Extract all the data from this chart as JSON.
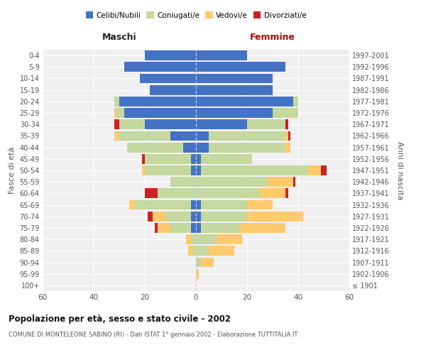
{
  "age_groups": [
    "100+",
    "95-99",
    "90-94",
    "85-89",
    "80-84",
    "75-79",
    "70-74",
    "65-69",
    "60-64",
    "55-59",
    "50-54",
    "45-49",
    "40-44",
    "35-39",
    "30-34",
    "25-29",
    "20-24",
    "15-19",
    "10-14",
    "5-9",
    "0-4"
  ],
  "birth_years": [
    "≤ 1901",
    "1902-1906",
    "1907-1911",
    "1912-1916",
    "1917-1921",
    "1922-1926",
    "1927-1931",
    "1932-1936",
    "1937-1941",
    "1942-1946",
    "1947-1951",
    "1952-1956",
    "1957-1961",
    "1962-1966",
    "1967-1971",
    "1972-1976",
    "1977-1981",
    "1982-1986",
    "1987-1991",
    "1992-1996",
    "1997-2001"
  ],
  "maschi_celibi": [
    0,
    0,
    0,
    0,
    0,
    2,
    2,
    2,
    0,
    0,
    2,
    2,
    5,
    10,
    20,
    28,
    30,
    18,
    22,
    28,
    20
  ],
  "maschi_coniugati": [
    0,
    0,
    0,
    1,
    2,
    8,
    10,
    22,
    15,
    10,
    18,
    18,
    22,
    20,
    10,
    3,
    2,
    0,
    0,
    0,
    0
  ],
  "maschi_vedovi": [
    0,
    0,
    0,
    2,
    2,
    5,
    5,
    2,
    0,
    0,
    1,
    0,
    0,
    2,
    0,
    1,
    0,
    0,
    0,
    0,
    0
  ],
  "maschi_divorziati": [
    0,
    0,
    0,
    0,
    0,
    1,
    2,
    0,
    5,
    0,
    0,
    1,
    0,
    0,
    2,
    0,
    0,
    0,
    0,
    0,
    0
  ],
  "femmine_nubili": [
    0,
    0,
    0,
    0,
    0,
    2,
    2,
    2,
    0,
    0,
    2,
    2,
    5,
    5,
    20,
    30,
    38,
    30,
    30,
    35,
    20
  ],
  "femmine_coniugate": [
    0,
    0,
    2,
    5,
    8,
    15,
    18,
    18,
    25,
    28,
    42,
    20,
    30,
    30,
    15,
    10,
    2,
    0,
    0,
    0,
    0
  ],
  "femmine_vedove": [
    0,
    1,
    5,
    10,
    10,
    18,
    22,
    10,
    10,
    10,
    5,
    0,
    2,
    1,
    0,
    0,
    0,
    0,
    0,
    0,
    0
  ],
  "femmine_divorziate": [
    0,
    0,
    0,
    0,
    0,
    0,
    0,
    0,
    1,
    1,
    2,
    0,
    0,
    1,
    1,
    0,
    0,
    0,
    0,
    0,
    0
  ],
  "color_celibi": "#4472c4",
  "color_coniugati": "#c5d8a0",
  "color_vedovi": "#ffc96e",
  "color_divorziati": "#cc2222",
  "title": "Popolazione per età, sesso e stato civile - 2002",
  "subtitle": "COMUNE DI MONTELEONE SABINO (RI) - Dati ISTAT 1° gennaio 2002 - Elaborazione TUTTITALIA.IT",
  "legend_labels": [
    "Celibi/Nubili",
    "Coniugati/e",
    "Vedovi/e",
    "Divorziati/e"
  ],
  "xlim": 60,
  "label_maschi": "Maschi",
  "label_femmine": "Femmine",
  "ylabel_left": "Fasce di età",
  "ylabel_right": "Anni di nascita",
  "bg_color": "#f0f0f0"
}
